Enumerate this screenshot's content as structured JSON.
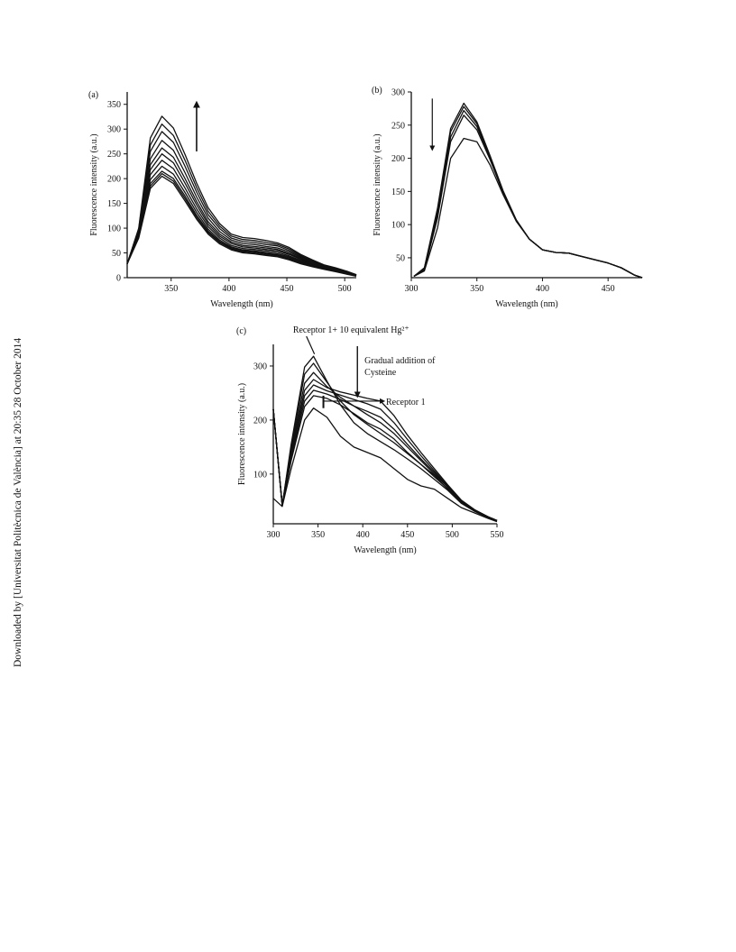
{
  "sidebar": {
    "text": "Downloaded by [Universitat Politècnica de València] at 20:35 28 October 2014"
  },
  "chart_data": [
    {
      "panel": "(a)",
      "type": "line",
      "xlabel": "Wavelength (nm)",
      "ylabel": "Fluorescence intensity (a.u.)",
      "xlim": [
        312,
        510
      ],
      "ylim": [
        0,
        375
      ],
      "xticks": [
        350,
        400,
        450,
        500
      ],
      "yticks": [
        0,
        50,
        100,
        150,
        200,
        250,
        300,
        350
      ],
      "x": [
        312,
        322,
        332,
        342,
        352,
        362,
        372,
        382,
        392,
        402,
        412,
        422,
        432,
        442,
        452,
        462,
        472,
        482,
        492,
        502,
        510
      ],
      "series": [
        {
          "values": [
            28,
            80,
            180,
            205,
            190,
            155,
            118,
            88,
            68,
            56,
            50,
            48,
            45,
            42,
            36,
            28,
            22,
            17,
            12,
            7,
            3
          ]
        },
        {
          "values": [
            28,
            82,
            185,
            210,
            195,
            160,
            122,
            91,
            71,
            58,
            52,
            50,
            47,
            44,
            38,
            30,
            23,
            18,
            13,
            8,
            4
          ]
        },
        {
          "values": [
            28,
            84,
            190,
            215,
            200,
            165,
            126,
            94,
            73,
            60,
            54,
            52,
            49,
            46,
            40,
            31,
            24,
            19,
            14,
            9,
            4
          ]
        },
        {
          "values": [
            28,
            86,
            198,
            225,
            209,
            172,
            132,
            98,
            76,
            62,
            56,
            54,
            51,
            48,
            42,
            33,
            25,
            19,
            14,
            9,
            4
          ]
        },
        {
          "values": [
            28,
            88,
            208,
            237,
            220,
            181,
            139,
            103,
            80,
            65,
            59,
            57,
            54,
            51,
            44,
            35,
            27,
            20,
            15,
            10,
            5
          ]
        },
        {
          "values": [
            28,
            90,
            218,
            250,
            232,
            191,
            147,
            108,
            84,
            69,
            62,
            60,
            57,
            54,
            47,
            37,
            28,
            21,
            16,
            10,
            5
          ]
        },
        {
          "values": [
            28,
            92,
            228,
            262,
            243,
            200,
            154,
            113,
            88,
            72,
            65,
            63,
            60,
            57,
            49,
            39,
            29,
            22,
            16,
            11,
            5
          ]
        },
        {
          "values": [
            28,
            94,
            240,
            277,
            257,
            212,
            163,
            120,
            93,
            76,
            69,
            67,
            63,
            60,
            52,
            41,
            31,
            23,
            17,
            11,
            5
          ]
        },
        {
          "values": [
            28,
            96,
            255,
            295,
            273,
            225,
            173,
            127,
            99,
            80,
            73,
            71,
            67,
            64,
            55,
            43,
            33,
            24,
            18,
            12,
            6
          ]
        },
        {
          "values": [
            28,
            98,
            268,
            310,
            287,
            237,
            182,
            134,
            104,
            84,
            77,
            75,
            71,
            67,
            58,
            45,
            34,
            25,
            19,
            12,
            6
          ]
        },
        {
          "values": [
            28,
            100,
            282,
            326,
            302,
            249,
            191,
            141,
            109,
            88,
            81,
            79,
            75,
            70,
            61,
            47,
            36,
            26,
            20,
            13,
            6
          ]
        }
      ],
      "arrow": "up"
    },
    {
      "panel": "(b)",
      "type": "line",
      "xlabel": "Wavelength (nm)",
      "ylabel": "Fluorescence intensity (a.u.)",
      "xlim": [
        300,
        476
      ],
      "ylim": [
        20,
        300
      ],
      "xticks": [
        300,
        350,
        400,
        450
      ],
      "yticks": [
        50,
        100,
        150,
        200,
        250,
        300
      ],
      "x": [
        302,
        310,
        320,
        330,
        340,
        350,
        360,
        370,
        380,
        390,
        400,
        410,
        420,
        430,
        440,
        450,
        460,
        470,
        476
      ],
      "series": [
        {
          "values": [
            22,
            30,
            95,
            200,
            230,
            225,
            190,
            145,
            105,
            78,
            62,
            58,
            57,
            52,
            47,
            42,
            35,
            24,
            20
          ]
        },
        {
          "values": [
            22,
            32,
            110,
            225,
            265,
            243,
            198,
            148,
            106,
            78,
            62,
            58,
            57,
            52,
            47,
            42,
            35,
            24,
            20
          ]
        },
        {
          "values": [
            22,
            33,
            115,
            232,
            272,
            248,
            200,
            149,
            106,
            78,
            62,
            58,
            57,
            52,
            47,
            42,
            35,
            24,
            20
          ]
        },
        {
          "values": [
            22,
            34,
            120,
            240,
            278,
            252,
            202,
            150,
            107,
            78,
            62,
            58,
            57,
            52,
            47,
            42,
            35,
            24,
            20
          ]
        },
        {
          "values": [
            22,
            35,
            125,
            245,
            283,
            255,
            204,
            151,
            107,
            78,
            62,
            58,
            57,
            52,
            47,
            42,
            35,
            24,
            20
          ]
        }
      ],
      "arrow": "down"
    },
    {
      "panel": "(c)",
      "type": "line",
      "xlabel": "Wavelength (nm)",
      "ylabel": "Fluorescence intensity (a.u.)",
      "xlim": [
        300,
        550
      ],
      "ylim": [
        8,
        340
      ],
      "xticks": [
        300,
        350,
        400,
        450,
        500,
        550
      ],
      "yticks": [
        100,
        200,
        300
      ],
      "x": [
        300,
        310,
        320,
        335,
        345,
        360,
        375,
        390,
        405,
        420,
        435,
        450,
        465,
        480,
        495,
        510,
        525,
        540,
        550
      ],
      "series": [
        {
          "values": [
            55,
            40,
            110,
            200,
            222,
            205,
            170,
            150,
            140,
            130,
            110,
            90,
            78,
            72,
            55,
            38,
            28,
            18,
            12
          ]
        },
        {
          "values": [
            220,
            42,
            125,
            225,
            245,
            240,
            228,
            212,
            195,
            183,
            165,
            140,
            118,
            98,
            72,
            48,
            32,
            20,
            14
          ]
        },
        {
          "values": [
            220,
            42,
            130,
            235,
            255,
            248,
            238,
            226,
            216,
            205,
            183,
            155,
            128,
            103,
            76,
            50,
            33,
            21,
            14
          ]
        },
        {
          "values": [
            220,
            42,
            135,
            245,
            265,
            254,
            246,
            238,
            230,
            220,
            195,
            164,
            134,
            106,
            78,
            51,
            34,
            21,
            14
          ]
        },
        {
          "values": [
            220,
            42,
            140,
            255,
            275,
            260,
            252,
            246,
            240,
            235,
            208,
            172,
            140,
            110,
            80,
            52,
            34,
            21,
            14
          ]
        },
        {
          "values": [
            220,
            42,
            145,
            268,
            288,
            262,
            242,
            226,
            210,
            195,
            175,
            150,
            125,
            100,
            76,
            50,
            33,
            20,
            14
          ]
        },
        {
          "values": [
            220,
            42,
            150,
            285,
            305,
            270,
            235,
            210,
            192,
            175,
            158,
            138,
            118,
            95,
            73,
            48,
            32,
            20,
            14
          ]
        },
        {
          "values": [
            220,
            42,
            155,
            298,
            318,
            272,
            228,
            195,
            175,
            160,
            145,
            128,
            110,
            90,
            70,
            46,
            31,
            19,
            13
          ]
        }
      ],
      "annotations": {
        "top": "Receptor 1+ 10 equivalent Hg²⁺",
        "middle_line1": "Gradual addition of",
        "middle_line2": "Cysteine",
        "right": "Receptor 1"
      }
    }
  ]
}
